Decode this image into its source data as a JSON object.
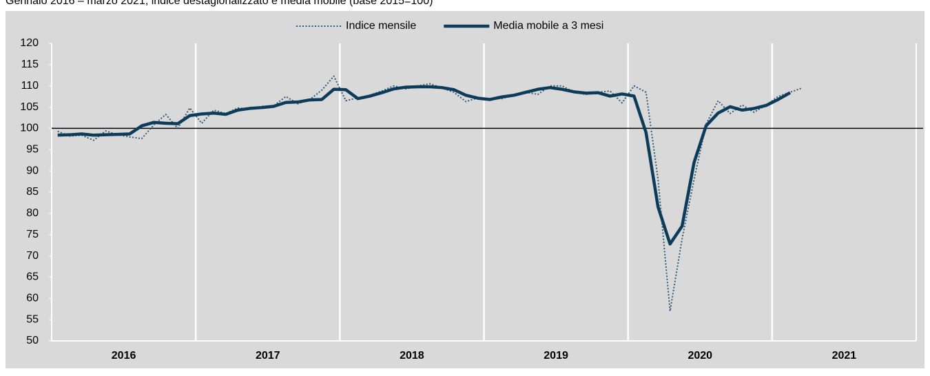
{
  "chart_data": {
    "type": "line",
    "subtitle": "Gennaio 2016 – marzo 2021, indice destagionalizzato e media mobile (base 2015=100)",
    "categories": [
      null,
      null,
      null,
      null,
      null,
      null,
      null,
      null,
      null,
      null,
      null,
      null,
      null,
      null,
      null,
      null,
      null,
      null,
      null,
      null,
      null,
      null,
      null,
      null,
      null,
      null,
      null,
      null,
      null,
      null,
      null,
      null,
      null,
      null,
      null,
      null,
      null,
      null,
      null,
      null,
      null,
      null,
      null,
      null,
      null,
      null,
      null,
      null,
      null,
      null,
      null,
      null,
      null,
      null,
      null,
      null,
      null,
      null,
      null,
      null,
      null,
      null,
      null,
      null,
      null,
      null,
      null,
      null,
      null,
      null,
      null,
      null
    ],
    "year_labels": [
      "2016",
      "2017",
      "2018",
      "2019",
      "2020",
      "2021"
    ],
    "series": [
      {
        "name": "Indice mensile",
        "color": "#2e5a7a",
        "style": "dotted",
        "values": [
          99.3,
          98.2,
          98.4,
          97.2,
          99.4,
          98.5,
          98,
          97.6,
          100.8,
          103.3,
          100,
          104.8,
          101.2,
          104.3,
          103.5,
          104.8,
          104.5,
          105.2,
          105.3,
          107.5,
          105.8,
          106.8,
          109,
          112.3,
          106.5,
          107.2,
          107.8,
          108.8,
          110,
          109.3,
          110,
          110.5,
          109.5,
          108.5,
          106.3,
          107.2,
          107,
          107,
          107.8,
          108.5,
          108,
          110,
          110,
          108.5,
          108,
          108.5,
          108.8,
          106,
          110,
          108.5,
          88,
          57,
          74,
          88,
          101,
          106.5,
          103.5,
          105.5,
          103.8,
          105.5,
          107.5,
          108.5,
          109.5,
          null,
          null,
          null,
          null,
          null,
          null,
          null,
          null,
          null
        ]
      },
      {
        "name": "Media mobile a 3 mesi",
        "color": "#0d3b5a",
        "style": "solid",
        "values": [
          98.4,
          98.5,
          98.7,
          98.4,
          98.5,
          98.6,
          98.7,
          100.6,
          101.4,
          101.2,
          101.1,
          103,
          103.4,
          103.6,
          103.3,
          104.3,
          104.7,
          104.9,
          105.2,
          106.1,
          106.2,
          106.7,
          106.8,
          109.2,
          109.1,
          107,
          107.6,
          108.4,
          109.3,
          109.7,
          109.8,
          109.8,
          109.6,
          109.1,
          107.8,
          107.1,
          106.8,
          107.4,
          107.8,
          108.5,
          109.2,
          109.6,
          109.2,
          108.6,
          108.3,
          108.4,
          107.6,
          108.1,
          107.6,
          99,
          81.5,
          72.8,
          77,
          92,
          100.6,
          103.6,
          105.1,
          104.3,
          104.7,
          105.4,
          106.8,
          108.4,
          null,
          null,
          null,
          null,
          null,
          null,
          null,
          null,
          null,
          null
        ]
      }
    ],
    "ylim": [
      50,
      120
    ],
    "yticks": [
      50,
      55,
      60,
      65,
      70,
      75,
      80,
      85,
      90,
      95,
      100,
      105,
      110,
      115,
      120
    ],
    "reference_line": 100,
    "legend": "top"
  }
}
